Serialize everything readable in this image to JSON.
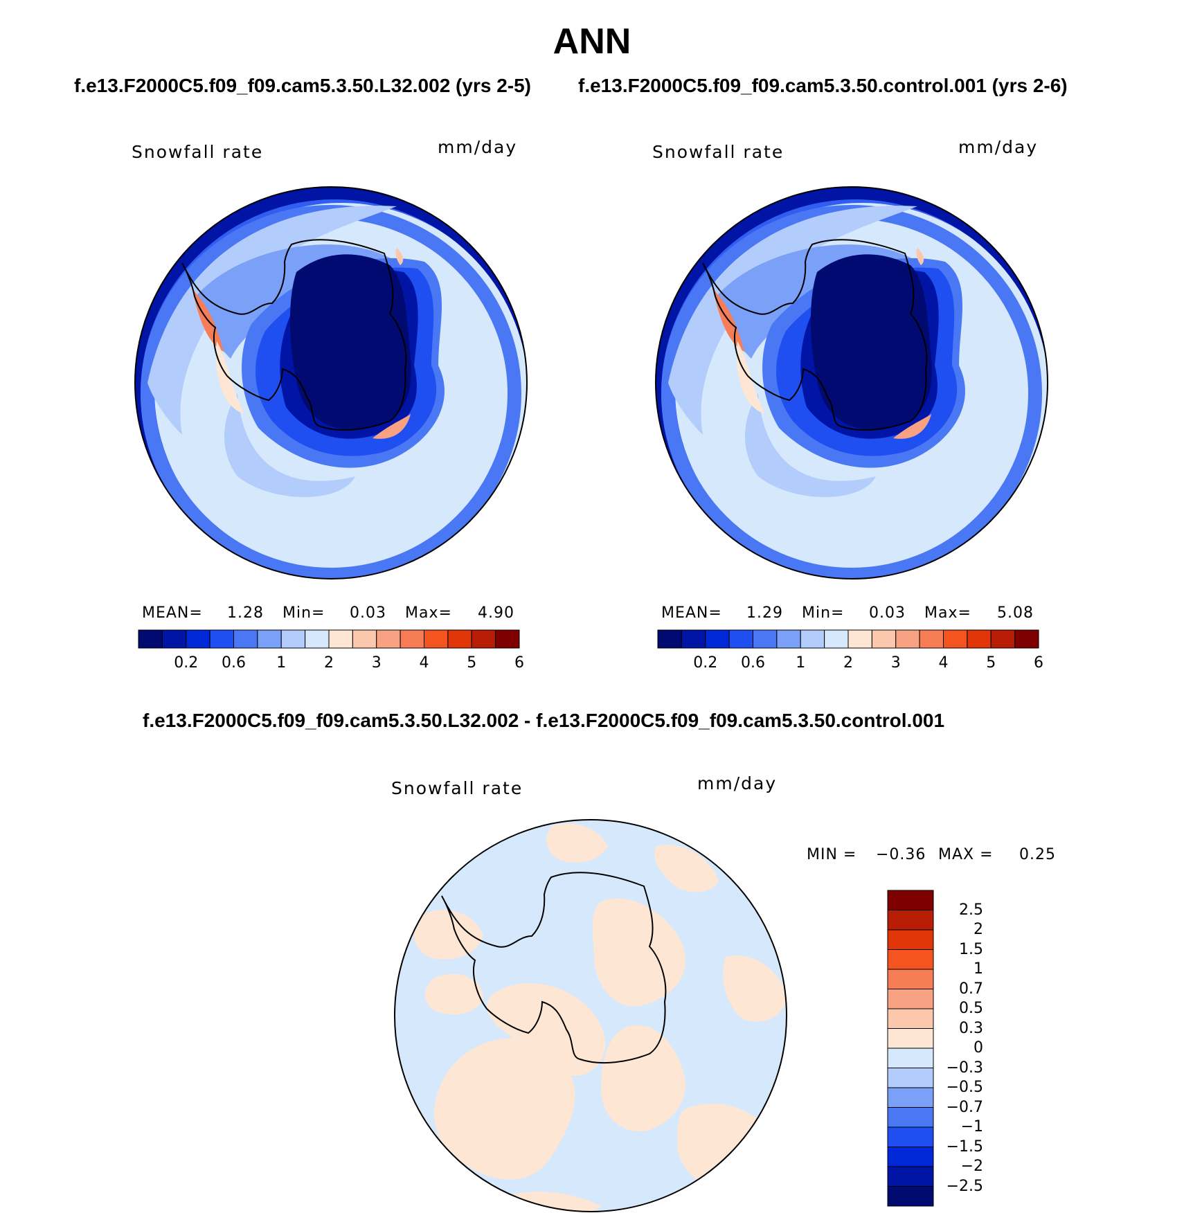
{
  "title": "ANN",
  "panel_left": {
    "case_title": "f.e13.F2000C5.f09_f09.cam5.3.50.L32.002 (yrs 2-5)",
    "variable": "Snowfall rate",
    "units": "mm/day",
    "mean_label": "MEAN=",
    "mean_value": "1.28",
    "min_label": "Min=",
    "min_value": "0.03",
    "max_label": "Max=",
    "max_value": "4.90"
  },
  "panel_right": {
    "case_title": "f.e13.F2000C5.f09_f09.cam5.3.50.control.001 (yrs 2-6)",
    "variable": "Snowfall rate",
    "units": "mm/day",
    "mean_label": "MEAN=",
    "mean_value": "1.29",
    "min_label": "Min=",
    "min_value": "0.03",
    "max_label": "Max=",
    "max_value": "5.08"
  },
  "panel_diff": {
    "case_title": "f.e13.F2000C5.f09_f09.cam5.3.50.L32.002 - f.e13.F2000C5.f09_f09.cam5.3.50.control.001",
    "variable": "Snowfall rate",
    "units": "mm/day",
    "min_label": "MIN =",
    "min_value": "−0.36",
    "max_label": "MAX =",
    "max_value": "0.25"
  },
  "colorbar_abs": {
    "colors": [
      "#000a70",
      "#0014a6",
      "#0028d8",
      "#1f4ff0",
      "#4a78f5",
      "#7aa0f7",
      "#b2ccfb",
      "#d6e8fc",
      "#fde6d4",
      "#fbc8ae",
      "#f9a283",
      "#f77d56",
      "#f4541f",
      "#e13608",
      "#b81e06",
      "#7f0000"
    ],
    "tick_labels": [
      "0.2",
      "0.6",
      "1",
      "2",
      "3",
      "4",
      "5",
      "6"
    ]
  },
  "colorbar_diff": {
    "colors": [
      "#7f0000",
      "#b81e06",
      "#e13608",
      "#f4541f",
      "#f77d56",
      "#f9a283",
      "#fbc8ae",
      "#fde6d4",
      "#d6e8fc",
      "#b2ccfb",
      "#7aa0f7",
      "#4a78f5",
      "#1f4ff0",
      "#0028d8",
      "#0014a6",
      "#000a70"
    ],
    "tick_labels": [
      "2.5",
      "2",
      "1.5",
      "1",
      "0.7",
      "0.5",
      "0.3",
      "0",
      "−0.3",
      "−0.5",
      "−0.7",
      "−1",
      "−1.5",
      "−2",
      "−2.5"
    ]
  }
}
